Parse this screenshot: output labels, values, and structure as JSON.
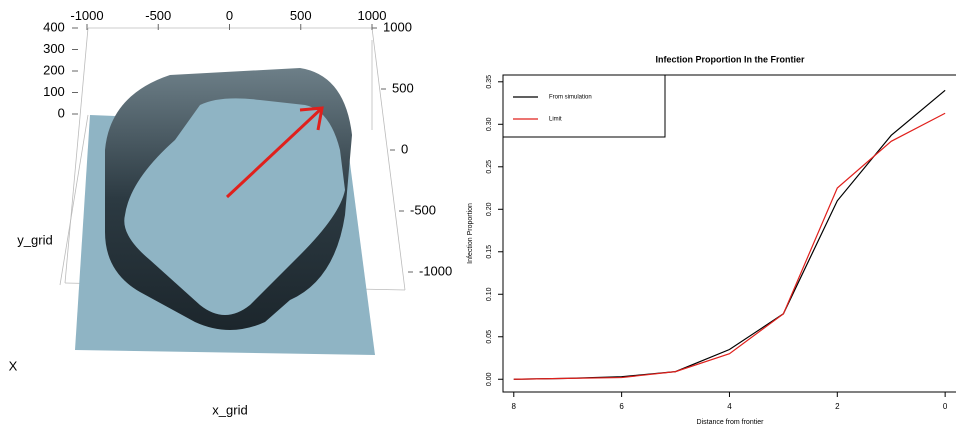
{
  "chart_data": [
    {
      "type": "surface3d",
      "xlabel": "x_grid",
      "ylabel": "y_grid",
      "zlabel": "X",
      "xticks": [
        -1000,
        -500,
        0,
        500,
        1000
      ],
      "yticks": [
        1000,
        500,
        0,
        -500,
        -1000
      ],
      "zticks": [
        400,
        300,
        200,
        100,
        0
      ],
      "xlim": [
        -1000,
        1000
      ],
      "ylim": [
        -1000,
        1000
      ],
      "zlim": [
        0,
        400
      ],
      "color": "#8fb4c4",
      "arrow_color": "#e0201c"
    },
    {
      "type": "line",
      "title": "Infection Proportion In the Frontier",
      "xlabel": "Distance from frontier",
      "ylabel": "Infection Proportion",
      "x": [
        8,
        7,
        6,
        5,
        4,
        3,
        2,
        1,
        0
      ],
      "series": [
        {
          "name": "From simulation",
          "color": "#000000",
          "values": [
            0.0,
            0.001,
            0.003,
            0.009,
            0.035,
            0.077,
            0.21,
            0.287,
            0.34
          ]
        },
        {
          "name": "Limit",
          "color": "#e0201c",
          "values": [
            0.0,
            0.001,
            0.002,
            0.009,
            0.03,
            0.077,
            0.225,
            0.28,
            0.313
          ]
        }
      ],
      "xlim": [
        8.2,
        -0.22
      ],
      "ylim": [
        -0.015,
        0.358
      ],
      "xticks": [
        8,
        6,
        4,
        2,
        0
      ],
      "yticks": [
        {
          "value": 0,
          "label": "0.00"
        },
        0.05,
        {
          "value": 0.1,
          "label": "0.10"
        },
        0.15,
        {
          "value": 0.2,
          "label": "0.20"
        },
        0.25,
        {
          "value": 0.3,
          "label": "0.30"
        },
        0.35
      ],
      "legend": "top-left"
    }
  ]
}
